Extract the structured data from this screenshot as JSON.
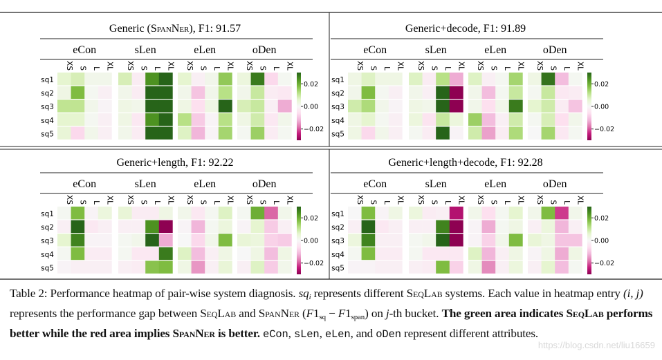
{
  "colormap": {
    "name": "PiYG",
    "vmin": -0.03,
    "vmax": 0.03,
    "ticks": [
      "0.02",
      "0.00",
      "−0.02"
    ],
    "tick_values": [
      0.02,
      0,
      -0.02
    ],
    "stops": [
      "#8e0152",
      "#c51b7d",
      "#de77ae",
      "#f1b6da",
      "#fde0ef",
      "#f7f7f7",
      "#e6f5d0",
      "#b8e186",
      "#7fbc41",
      "#4d9221",
      "#276419"
    ]
  },
  "rows": [
    "sq1",
    "sq2",
    "sq3",
    "sq4",
    "sq5"
  ],
  "columns": [
    "XS",
    "S",
    "L",
    "XL"
  ],
  "groups": [
    "eCon",
    "sLen",
    "eLen",
    "oDen"
  ],
  "chart_data": [
    {
      "type": "heatmap",
      "title": [
        {
          "t": "Generic ("
        },
        {
          "t": "SpanNer",
          "sc": true
        },
        {
          "t": "), F1: 91.57"
        }
      ],
      "values": {
        "eCon": [
          [
            0.006,
            0.008,
            0.002,
            0.002
          ],
          [
            0.003,
            0.018,
            0.001,
            -0.002
          ],
          [
            0.011,
            0.011,
            0.002,
            -0.001
          ],
          [
            0.006,
            0.006,
            0.001,
            -0.002
          ],
          [
            0.005,
            -0.007,
            0.002,
            -0.002
          ]
        ],
        "sLen": [
          [
            0.008,
            -0.003,
            0.024,
            0.03
          ],
          [
            0.002,
            -0.003,
            0.03,
            0.03
          ],
          [
            0.003,
            0.002,
            0.03,
            0.03
          ],
          [
            0.003,
            -0.004,
            0.024,
            0.03
          ],
          [
            0.002,
            -0.003,
            0.03,
            0.03
          ]
        ],
        "eLen": [
          [
            0.006,
            -0.002,
            0.002,
            0.016
          ],
          [
            0.002,
            -0.01,
            0.002,
            0.012
          ],
          [
            0.003,
            -0.006,
            0.003,
            0.03
          ],
          [
            0.012,
            -0.009,
            -0.001,
            0.012
          ],
          [
            0.007,
            -0.012,
            -0.001,
            0.014
          ]
        ],
        "oDen": [
          [
            0.004,
            0.027,
            -0.007,
            0.001
          ],
          [
            0.002,
            0.01,
            -0.003,
            -0.004
          ],
          [
            0.008,
            0.01,
            -0.002,
            -0.013
          ],
          [
            0.003,
            0.009,
            -0.004,
            0.002
          ],
          [
            0.001,
            0.015,
            -0.003,
            0.001
          ]
        ]
      }
    },
    {
      "type": "heatmap",
      "title": [
        {
          "t": "Generic+decode, F1: 91.89"
        }
      ],
      "values": {
        "eCon": [
          [
            0.003,
            0.007,
            0.003,
            0.003
          ],
          [
            0.002,
            0.018,
            0.001,
            -0.002
          ],
          [
            0.009,
            0.013,
            0.002,
            -0.001
          ],
          [
            0.003,
            0.006,
            0.001,
            -0.002
          ],
          [
            0.003,
            -0.007,
            0.002,
            -0.002
          ]
        ],
        "sLen": [
          [
            0.007,
            -0.003,
            0.012,
            -0.013
          ],
          [
            0.002,
            -0.002,
            0.03,
            -0.03
          ],
          [
            0.003,
            0.002,
            0.03,
            -0.03
          ],
          [
            0.004,
            -0.005,
            0.01,
            0.004
          ],
          [
            0.001,
            -0.003,
            0.03,
            -0.001
          ]
        ],
        "eLen": [
          [
            0.007,
            -0.002,
            0.001,
            0.014
          ],
          [
            0.002,
            -0.011,
            0.001,
            0.01
          ],
          [
            0.002,
            -0.006,
            0.002,
            0.027
          ],
          [
            0.015,
            -0.011,
            -0.002,
            0.009
          ],
          [
            0.009,
            -0.014,
            -0.003,
            0.013
          ]
        ],
        "oDen": [
          [
            0.003,
            0.028,
            -0.011,
            0.001
          ],
          [
            0.001,
            0.01,
            -0.004,
            -0.003
          ],
          [
            0.006,
            0.009,
            -0.003,
            -0.01
          ],
          [
            0.001,
            0.008,
            -0.006,
            0.002
          ],
          [
            0.0,
            0.014,
            -0.004,
            0.001
          ]
        ]
      }
    },
    {
      "type": "heatmap",
      "title": [
        {
          "t": "Generic+length, F1: 92.22"
        }
      ],
      "values": {
        "eCon": [
          [
            0.001,
            0.018,
            -0.001,
            0.004
          ],
          [
            -0.002,
            0.03,
            -0.004,
            -0.002
          ],
          [
            0.006,
            0.026,
            -0.001,
            -0.001
          ],
          [
            0.001,
            0.018,
            -0.003,
            -0.003
          ],
          [
            -0.001,
            -0.002,
            -0.002,
            -0.002
          ]
        ],
        "sLen": [
          [
            0.005,
            -0.003,
            -0.003,
            0.003
          ],
          [
            -0.002,
            -0.002,
            0.024,
            -0.03
          ],
          [
            0.001,
            0.002,
            0.03,
            -0.013
          ],
          [
            0.001,
            -0.004,
            -0.004,
            0.027
          ],
          [
            -0.002,
            -0.003,
            0.017,
            0.018
          ]
        ],
        "eLen": [
          [
            0.002,
            -0.004,
            0.001,
            0.007
          ],
          [
            -0.001,
            -0.012,
            0.001,
            0.004
          ],
          [
            0.0,
            -0.007,
            0.002,
            0.018
          ],
          [
            0.007,
            -0.011,
            -0.002,
            0.003
          ],
          [
            0.003,
            -0.015,
            -0.002,
            0.005
          ]
        ],
        "oDen": [
          [
            0.001,
            0.02,
            -0.019,
            0.002
          ],
          [
            -0.001,
            0.006,
            -0.009,
            -0.002
          ],
          [
            0.005,
            0.004,
            -0.008,
            -0.009
          ],
          [
            0.0,
            0.003,
            -0.011,
            0.003
          ],
          [
            -0.002,
            0.007,
            -0.009,
            0.002
          ]
        ]
      }
    },
    {
      "type": "heatmap",
      "title": [
        {
          "t": "Generic+length+decode, F1: 92.28"
        }
      ],
      "values": {
        "eCon": [
          [
            0.0,
            0.018,
            -0.001,
            0.003
          ],
          [
            -0.002,
            0.03,
            -0.004,
            -0.002
          ],
          [
            0.004,
            0.026,
            -0.002,
            -0.002
          ],
          [
            0.001,
            0.018,
            -0.003,
            -0.003
          ],
          [
            -0.001,
            -0.001,
            -0.002,
            -0.002
          ]
        ],
        "sLen": [
          [
            0.004,
            -0.003,
            -0.002,
            -0.026
          ],
          [
            -0.002,
            -0.002,
            0.026,
            -0.03
          ],
          [
            0.001,
            0.002,
            0.03,
            -0.03
          ],
          [
            0.001,
            -0.004,
            -0.004,
            -0.004
          ],
          [
            -0.002,
            -0.003,
            0.018,
            -0.008
          ]
        ],
        "eLen": [
          [
            0.002,
            -0.006,
            0.001,
            0.006
          ],
          [
            -0.001,
            -0.013,
            0.001,
            0.003
          ],
          [
            -0.001,
            -0.008,
            0.002,
            0.018
          ],
          [
            0.007,
            -0.012,
            -0.002,
            0.003
          ],
          [
            0.003,
            -0.016,
            -0.002,
            0.004
          ]
        ],
        "oDen": [
          [
            0.002,
            0.018,
            -0.022,
            0.002
          ],
          [
            -0.002,
            0.004,
            -0.012,
            -0.002
          ],
          [
            0.005,
            0.003,
            -0.01,
            -0.01
          ],
          [
            -0.001,
            0.003,
            -0.013,
            0.003
          ],
          [
            -0.002,
            0.006,
            -0.011,
            0.001
          ]
        ]
      }
    }
  ],
  "caption": [
    {
      "t": "Table 2: Performance heatmap of pair-wise system diagnosis. "
    },
    {
      "t": "sq",
      "c": "it"
    },
    {
      "t": "i",
      "c": "it sub"
    },
    {
      "t": " represents different "
    },
    {
      "t": "SeqLab",
      "c": "sc"
    },
    {
      "t": " systems. Each value in heatmap entry "
    },
    {
      "t": "(i, j)",
      "c": "it"
    },
    {
      "t": " represents the performance gap between "
    },
    {
      "t": "SeqLab",
      "c": "sc"
    },
    {
      "t": " and "
    },
    {
      "t": "SpanNer",
      "c": "sc"
    },
    {
      "t": " ("
    },
    {
      "t": "F",
      "c": "it"
    },
    {
      "t": "1"
    },
    {
      "t": "sq",
      "c": "sub"
    },
    {
      "t": " − "
    },
    {
      "t": "F",
      "c": "it"
    },
    {
      "t": "1"
    },
    {
      "t": "span",
      "c": "sub"
    },
    {
      "t": ") on "
    },
    {
      "t": "j",
      "c": "it"
    },
    {
      "t": "-th bucket. "
    },
    {
      "t": "The green area indicates ",
      "c": "b"
    },
    {
      "t": "SeqLab",
      "c": "b sc"
    },
    {
      "t": " performs better while the red area implies ",
      "c": "b"
    },
    {
      "t": "SpanNer",
      "c": "b sc"
    },
    {
      "t": " is better.",
      "c": "b"
    },
    {
      "t": " "
    },
    {
      "t": "eCon",
      "c": "mono"
    },
    {
      "t": ", "
    },
    {
      "t": "sLen",
      "c": "mono"
    },
    {
      "t": ", "
    },
    {
      "t": "eLen",
      "c": "mono"
    },
    {
      "t": ", and "
    },
    {
      "t": "oDen",
      "c": "mono"
    },
    {
      "t": " represent different attributes."
    }
  ],
  "watermark": "https://blog.csdn.net/liu16659"
}
